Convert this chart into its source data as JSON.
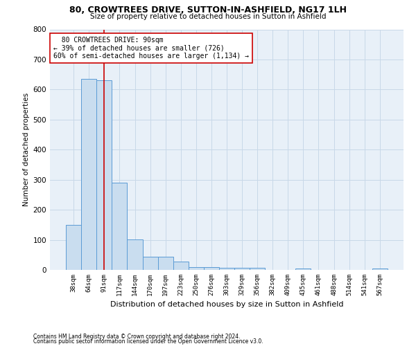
{
  "title1": "80, CROWTREES DRIVE, SUTTON-IN-ASHFIELD, NG17 1LH",
  "title2": "Size of property relative to detached houses in Sutton in Ashfield",
  "xlabel": "Distribution of detached houses by size in Sutton in Ashfield",
  "ylabel": "Number of detached properties",
  "footnote1": "Contains HM Land Registry data © Crown copyright and database right 2024.",
  "footnote2": "Contains public sector information licensed under the Open Government Licence v3.0.",
  "bar_labels": [
    "38sqm",
    "64sqm",
    "91sqm",
    "117sqm",
    "144sqm",
    "170sqm",
    "197sqm",
    "223sqm",
    "250sqm",
    "276sqm",
    "303sqm",
    "329sqm",
    "356sqm",
    "382sqm",
    "409sqm",
    "435sqm",
    "461sqm",
    "488sqm",
    "514sqm",
    "541sqm",
    "567sqm"
  ],
  "bar_values": [
    150,
    635,
    630,
    290,
    102,
    44,
    44,
    28,
    10,
    10,
    6,
    6,
    6,
    0,
    0,
    5,
    0,
    0,
    0,
    0,
    5
  ],
  "bar_color": "#c9ddef",
  "bar_edge_color": "#5b9bd5",
  "grid_color": "#c8d8e8",
  "property_line_x": 2,
  "property_line_color": "#cc0000",
  "annotation_text": "  80 CROWTREES DRIVE: 90sqm\n← 39% of detached houses are smaller (726)\n60% of semi-detached houses are larger (1,134) →",
  "annotation_box_color": "#ffffff",
  "annotation_box_edge": "#cc0000",
  "ylim": [
    0,
    800
  ],
  "yticks": [
    0,
    100,
    200,
    300,
    400,
    500,
    600,
    700,
    800
  ],
  "background_color": "#e8f0f8",
  "figsize": [
    6.0,
    5.0
  ],
  "dpi": 100
}
